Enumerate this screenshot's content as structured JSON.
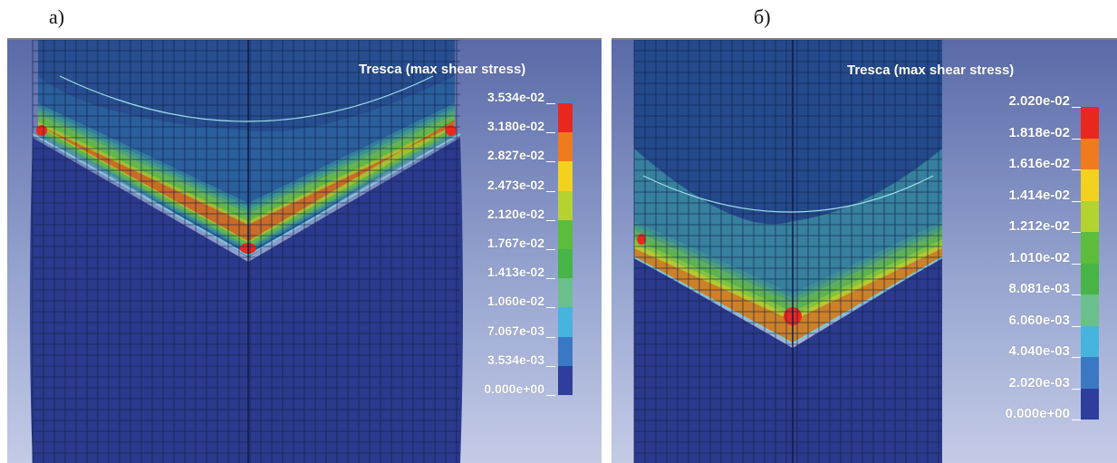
{
  "panels": [
    {
      "label": "а)",
      "legend_title": "Tresca (max shear stress)",
      "ticks": [
        "3.534e-02",
        "3.180e-02",
        "2.827e-02",
        "2.473e-02",
        "2.120e-02",
        "1.767e-02",
        "1.413e-02",
        "1.060e-02",
        "7.067e-03",
        "3.534e-03",
        "0.000e+00"
      ]
    },
    {
      "label": "б)",
      "legend_title": "Tresca (max shear stress)",
      "ticks": [
        "2.020e-02",
        "1.818e-02",
        "1.616e-02",
        "1.414e-02",
        "1.212e-02",
        "1.010e-02",
        "8.081e-03",
        "6.060e-03",
        "4.040e-03",
        "2.020e-03",
        "0.000e+00"
      ]
    }
  ],
  "colorbar": [
    "#e8281e",
    "#f07a1e",
    "#f2d21e",
    "#b4d232",
    "#5cbc3c",
    "#46b446",
    "#6ac08c",
    "#46b4dc",
    "#3a78c4",
    "#2e3e9c"
  ]
}
